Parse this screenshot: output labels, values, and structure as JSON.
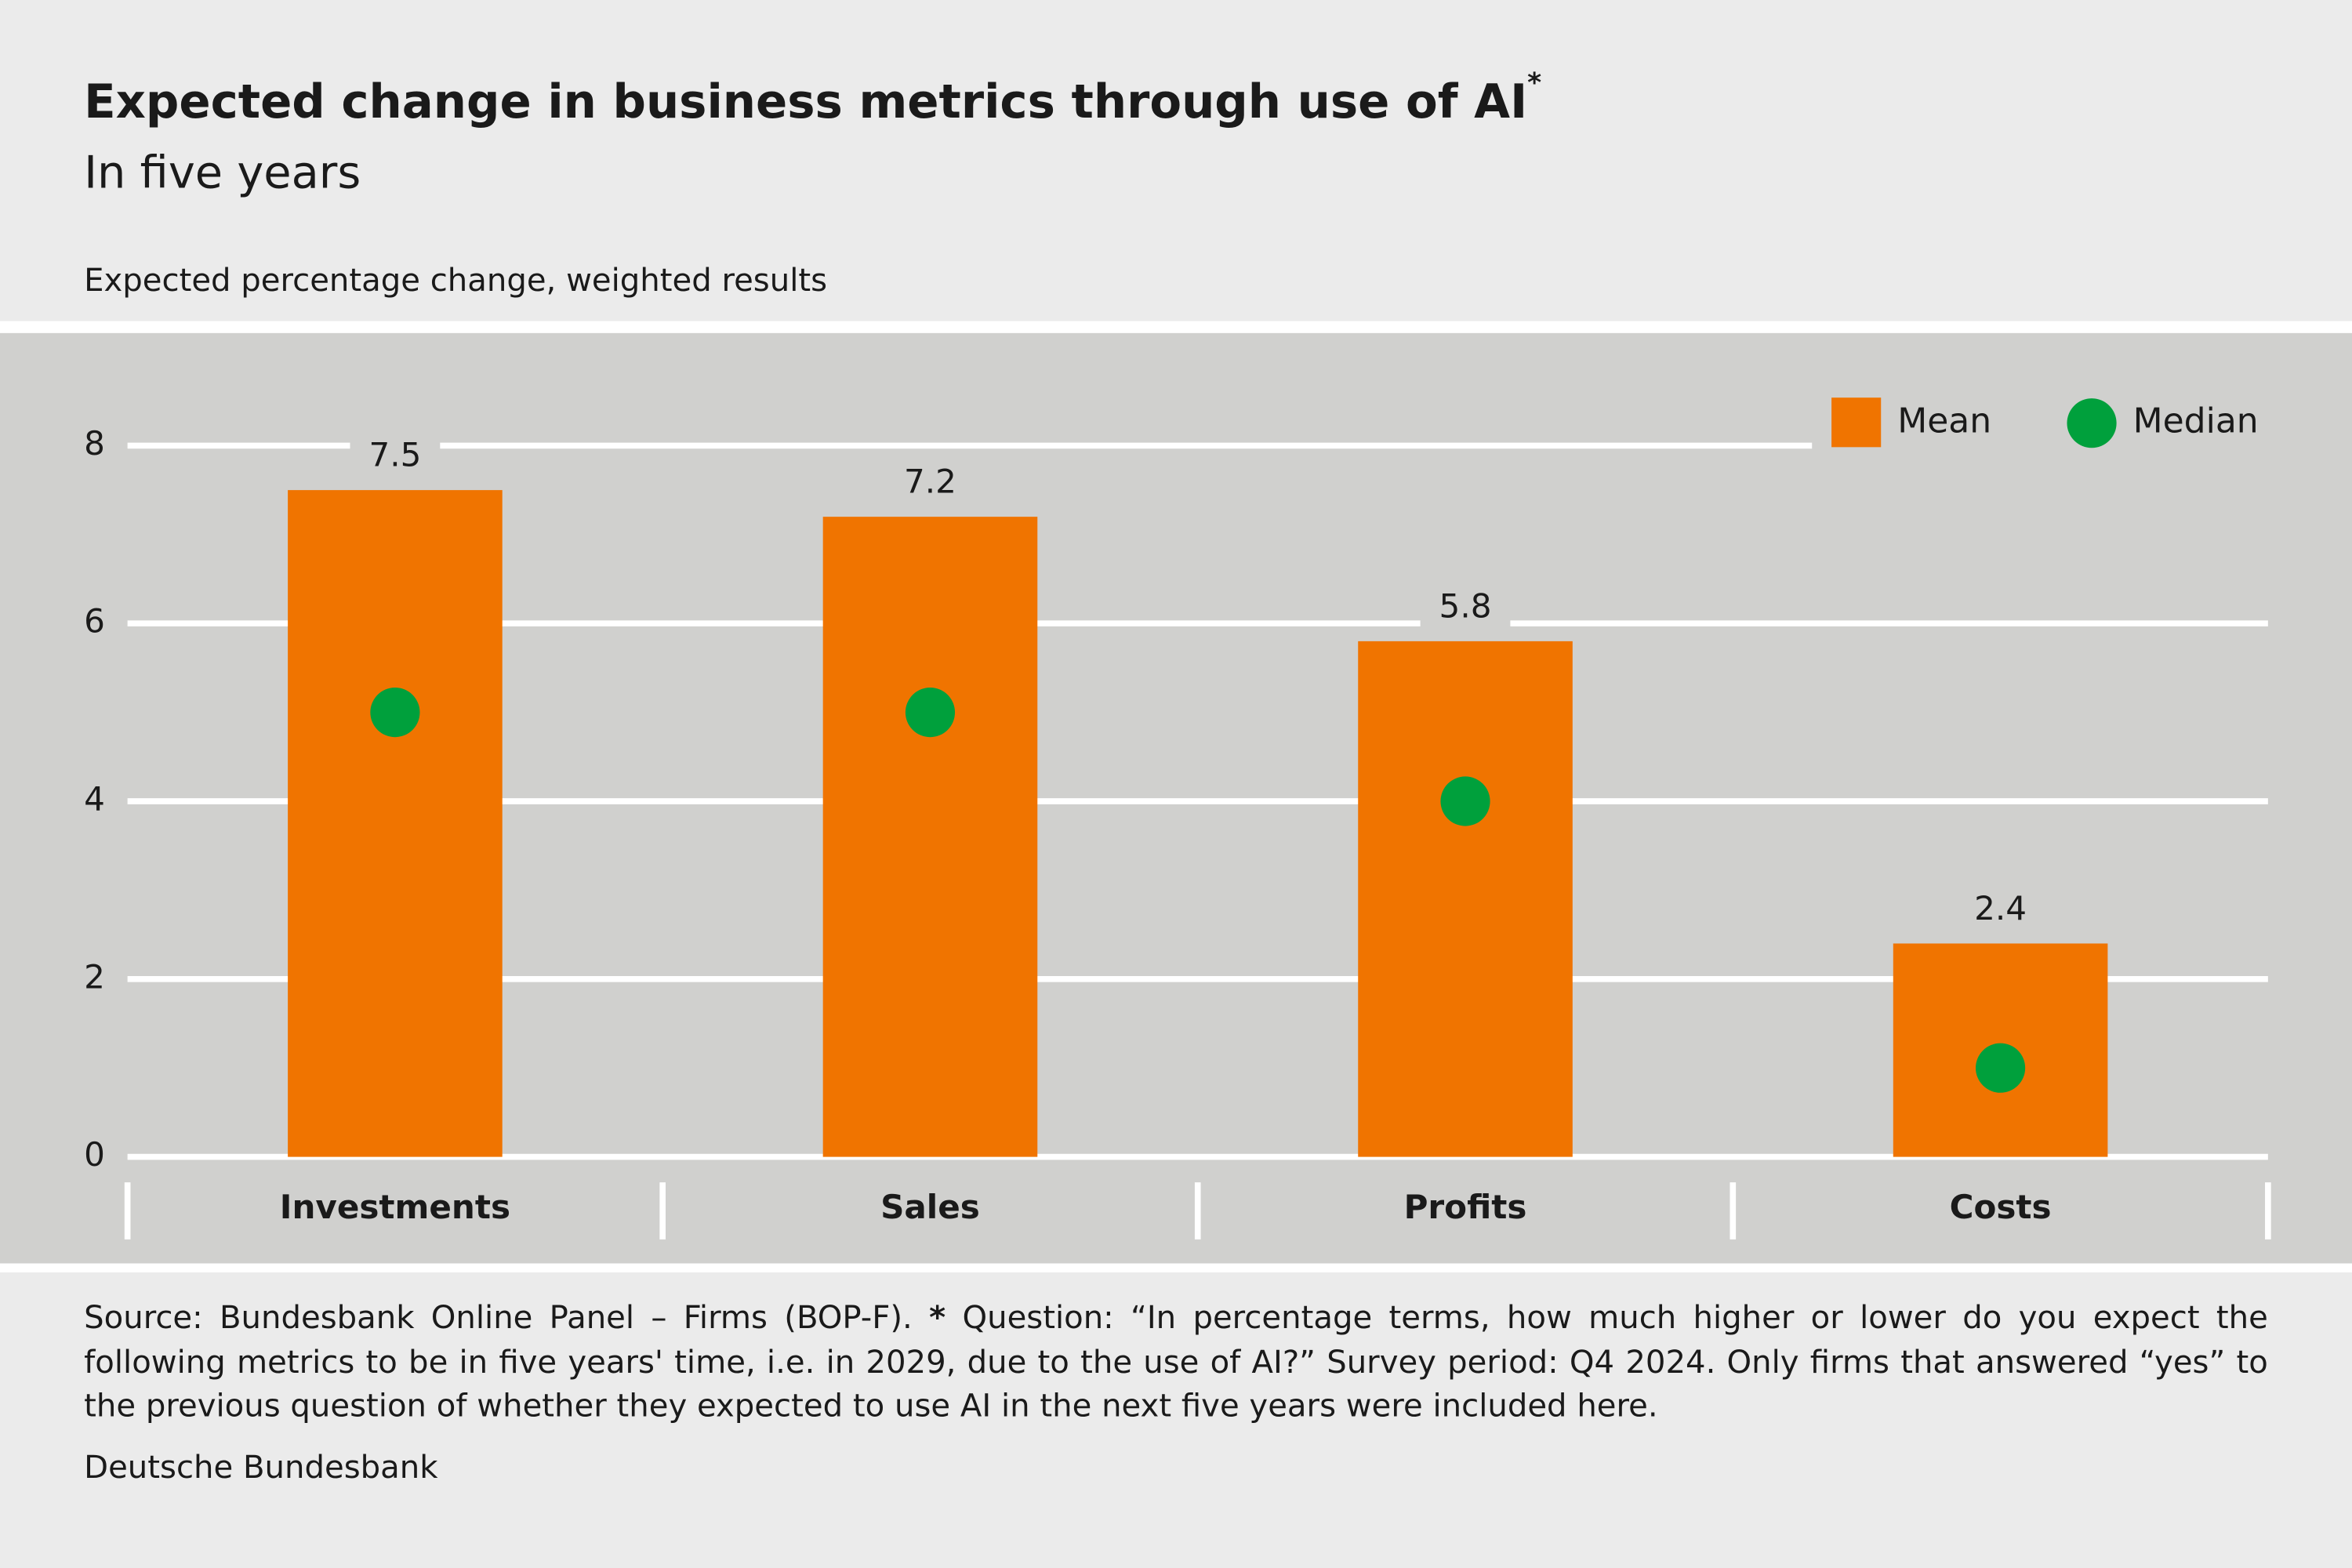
{
  "chart_data": {
    "type": "bar",
    "title": "Expected change in business metrics through use of AI",
    "title_note": "*",
    "subtitle": "In five years",
    "y_axis_label": "Expected percentage change, weighted results",
    "categories": [
      "Investments",
      "Sales",
      "Profits",
      "Costs"
    ],
    "series": [
      {
        "name": "Mean",
        "color": "#f07400",
        "marker": "bar",
        "values": [
          7.5,
          7.2,
          5.8,
          2.4
        ]
      },
      {
        "name": "Median",
        "color": "#00a03c",
        "marker": "dot",
        "values": [
          5,
          5,
          4,
          1
        ]
      }
    ],
    "ylim": [
      0,
      8
    ],
    "yticks": [
      0,
      2,
      4,
      6,
      8
    ],
    "grid": true,
    "legend": "top-right"
  },
  "footer": {
    "source": "Source: Bundesbank Online Panel – Firms (BOP-F).",
    "marker": "*",
    "question": "Question: “In percentage terms, how much higher or lower do you expect the following metrics to be in five years' time, i.e. in 2029, due to the use of AI?” Survey period: Q4 2024. Only firms that answered “yes” to the previous question of whether they expected to use AI in the next five years were included here.",
    "credit": "Deutsche Bundesbank"
  }
}
